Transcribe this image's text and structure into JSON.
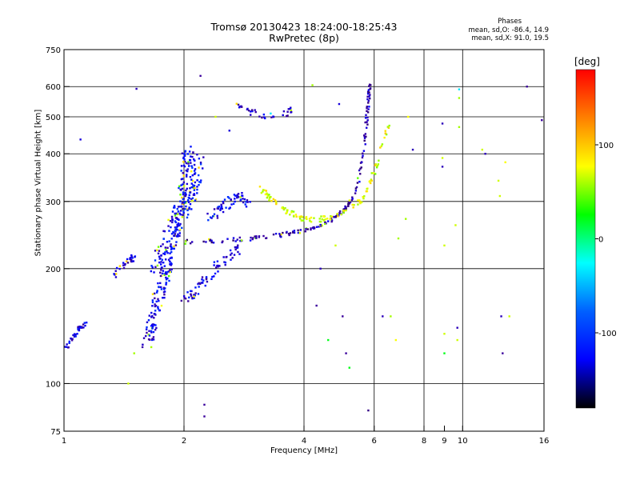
{
  "header": {
    "title_line1": "Tromsø 20130423 18:24:00-18:25:43",
    "title_line2": "RwPretec (8p)",
    "stats_title": "Phases",
    "stats_o": "mean, sd,O: -86.4, 14.9",
    "stats_x": "mean, sd,X:  91.0, 19.5"
  },
  "colorbar": {
    "label": "[deg]",
    "range": [
      -180,
      180
    ],
    "ticks": [
      {
        "value": 100,
        "label": "100"
      },
      {
        "value": 0,
        "label": "0"
      },
      {
        "value": -100,
        "label": "-100"
      }
    ],
    "stops": [
      "#ff0000",
      "#ff8000",
      "#ffff00",
      "#00ff00",
      "#00ffff",
      "#0060ff",
      "#0000ff",
      "#000000"
    ]
  },
  "chart_data": {
    "type": "scatter",
    "xlabel": "Frequency [MHz]",
    "ylabel": "Stationary phase Virtual Height [km]",
    "xscale": "log",
    "yscale": "log",
    "xlim": [
      1,
      16
    ],
    "ylim": [
      75,
      750
    ],
    "xticks": [
      {
        "value": 1,
        "label": "1"
      },
      {
        "value": 2,
        "label": "2"
      },
      {
        "value": 4,
        "label": "4"
      },
      {
        "value": 6,
        "label": "6"
      },
      {
        "value": 8,
        "label": "8"
      },
      {
        "value": 9,
        "label": "9"
      },
      {
        "value": 10,
        "label": "10"
      },
      {
        "value": 16,
        "label": "16"
      }
    ],
    "yticks": [
      {
        "value": 75,
        "label": "75"
      },
      {
        "value": 100,
        "label": "100"
      },
      {
        "value": 200,
        "label": "200"
      },
      {
        "value": 300,
        "label": "300"
      },
      {
        "value": 400,
        "label": "400"
      },
      {
        "value": 500,
        "label": "500"
      },
      {
        "value": 600,
        "label": "600"
      },
      {
        "value": 750,
        "label": "750"
      }
    ],
    "xgrid": [
      2,
      4,
      6,
      8,
      10
    ],
    "ygrid": [
      100,
      200,
      300,
      400,
      500,
      600
    ],
    "color": "phase [deg]",
    "traces": [
      {
        "pts": [
          [
            1.0,
            124
          ],
          [
            1.04,
            128
          ],
          [
            1.07,
            135
          ],
          [
            1.1,
            140
          ],
          [
            1.14,
            145
          ]
        ],
        "phase": -88,
        "spread": 0.015,
        "n": 40
      },
      {
        "pts": [
          [
            1.3,
            190
          ],
          [
            1.42,
            205
          ],
          [
            1.5,
            215
          ]
        ],
        "phase": -95,
        "spread": 0.02,
        "n": 30
      },
      {
        "pts": [
          [
            1.62,
            130
          ],
          [
            1.68,
            150
          ],
          [
            1.75,
            175
          ],
          [
            1.82,
            205
          ],
          [
            1.9,
            250
          ],
          [
            1.96,
            300
          ],
          [
            2.02,
            360
          ],
          [
            2.06,
            410
          ]
        ],
        "phase": -85,
        "spread": 0.05,
        "n": 220
      },
      {
        "pts": [
          [
            1.7,
            200
          ],
          [
            1.8,
            230
          ],
          [
            1.9,
            260
          ],
          [
            2.0,
            290
          ],
          [
            2.1,
            320
          ],
          [
            2.2,
            380
          ]
        ],
        "phase": -80,
        "spread": 0.06,
        "n": 160
      },
      {
        "pts": [
          [
            1.95,
            165
          ],
          [
            2.05,
            170
          ],
          [
            2.15,
            175
          ],
          [
            2.3,
            190
          ],
          [
            2.45,
            205
          ],
          [
            2.6,
            215
          ],
          [
            2.75,
            225
          ]
        ],
        "phase": -90,
        "spread": 0.03,
        "n": 70
      },
      {
        "pts": [
          [
            2.0,
            235
          ],
          [
            2.5,
            237
          ],
          [
            3.0,
            240
          ],
          [
            3.5,
            245
          ],
          [
            4.0,
            252
          ],
          [
            4.4,
            260
          ],
          [
            4.8,
            272
          ],
          [
            5.1,
            290
          ],
          [
            5.4,
            320
          ],
          [
            5.6,
            380
          ],
          [
            5.7,
            450
          ],
          [
            5.8,
            540
          ],
          [
            5.85,
            610
          ]
        ],
        "phase": -105,
        "spread": 0.012,
        "n": 180
      },
      {
        "pts": [
          [
            2.3,
            270
          ],
          [
            2.45,
            285
          ],
          [
            2.6,
            300
          ],
          [
            2.8,
            310
          ],
          [
            2.9,
            295
          ]
        ],
        "phase": -82,
        "spread": 0.03,
        "n": 60
      },
      {
        "pts": [
          [
            3.1,
            325
          ],
          [
            3.3,
            305
          ],
          [
            3.6,
            285
          ],
          [
            3.9,
            272
          ],
          [
            4.3,
            268
          ],
          [
            4.8,
            275
          ],
          [
            5.3,
            290
          ],
          [
            5.7,
            310
          ],
          [
            6.0,
            360
          ],
          [
            6.3,
            420
          ],
          [
            6.5,
            470
          ]
        ],
        "phase": 95,
        "spread": 0.015,
        "n": 130
      },
      {
        "pts": [
          [
            2.7,
            540
          ],
          [
            2.85,
            520
          ],
          [
            3.0,
            510
          ],
          [
            3.3,
            500
          ],
          [
            3.6,
            510
          ],
          [
            3.8,
            525
          ]
        ],
        "phase": -92,
        "spread": 0.02,
        "n": 35
      }
    ],
    "scatter": [
      [
        1.1,
        436,
        -90
      ],
      [
        1.35,
        190,
        -95
      ],
      [
        1.52,
        592,
        -100
      ],
      [
        1.45,
        100,
        90
      ],
      [
        1.5,
        120,
        80
      ],
      [
        2.2,
        640,
        -110
      ],
      [
        2.25,
        88,
        -110
      ],
      [
        2.25,
        82,
        -110
      ],
      [
        2.4,
        500,
        90
      ],
      [
        2.6,
        460,
        -90
      ],
      [
        3.3,
        510,
        0
      ],
      [
        4.2,
        605,
        80
      ],
      [
        4.4,
        200,
        -100
      ],
      [
        4.3,
        160,
        -110
      ],
      [
        4.6,
        130,
        40
      ],
      [
        4.8,
        230,
        90
      ],
      [
        4.9,
        540,
        -90
      ],
      [
        5.0,
        150,
        -110
      ],
      [
        5.1,
        120,
        -110
      ],
      [
        5.2,
        110,
        40
      ],
      [
        5.8,
        85,
        -120
      ],
      [
        6.3,
        150,
        -100
      ],
      [
        6.6,
        150,
        80
      ],
      [
        6.8,
        130,
        100
      ],
      [
        6.9,
        240,
        80
      ],
      [
        7.2,
        270,
        80
      ],
      [
        7.3,
        500,
        100
      ],
      [
        7.5,
        410,
        -100
      ],
      [
        8.9,
        480,
        -100
      ],
      [
        8.9,
        390,
        90
      ],
      [
        8.9,
        370,
        -100
      ],
      [
        9.0,
        230,
        90
      ],
      [
        9.0,
        135,
        90
      ],
      [
        9.0,
        120,
        40
      ],
      [
        9.6,
        260,
        90
      ],
      [
        9.7,
        130,
        90
      ],
      [
        9.7,
        140,
        -100
      ],
      [
        9.8,
        470,
        80
      ],
      [
        9.8,
        560,
        80
      ],
      [
        9.8,
        590,
        0
      ],
      [
        11.2,
        410,
        90
      ],
      [
        11.4,
        400,
        -100
      ],
      [
        12.3,
        340,
        90
      ],
      [
        12.4,
        310,
        90
      ],
      [
        12.5,
        150,
        -100
      ],
      [
        12.6,
        120,
        -110
      ],
      [
        12.8,
        380,
        100
      ],
      [
        13.1,
        150,
        90
      ],
      [
        14.5,
        600,
        -110
      ],
      [
        15.8,
        490,
        -110
      ]
    ]
  }
}
